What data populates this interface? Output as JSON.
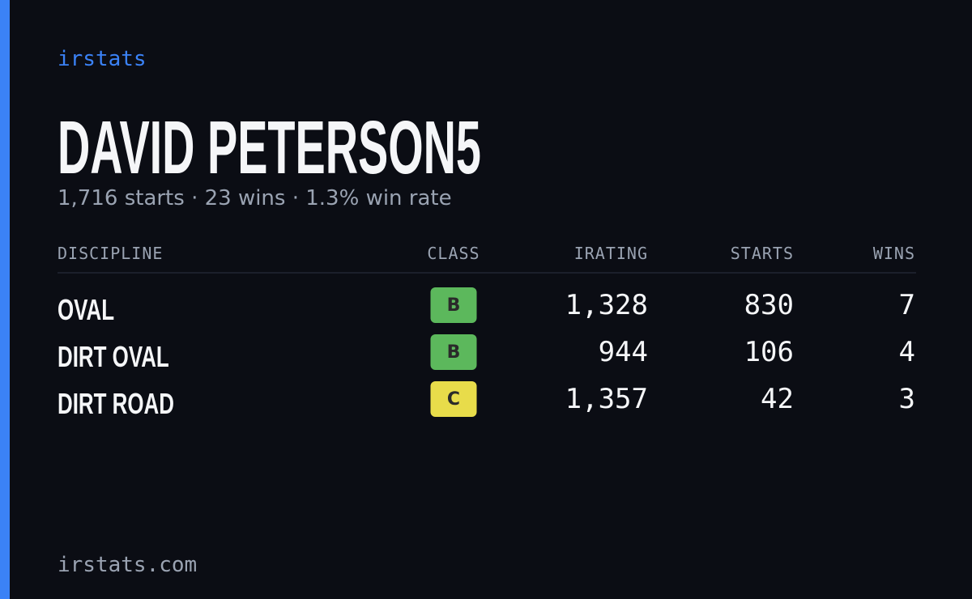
{
  "brand": "irstats",
  "title": "DAVID PETERSON5",
  "subtitle": "1,716 starts · 23 wins · 1.3% win rate",
  "table": {
    "headers": [
      "DISCIPLINE",
      "CLASS",
      "IRATING",
      "STARTS",
      "WINS"
    ],
    "rows": [
      {
        "discipline": "OVAL",
        "class": "B",
        "class_color": "#5cb85c",
        "irating": "1,328",
        "starts": "830",
        "wins": "7"
      },
      {
        "discipline": "DIRT OVAL",
        "class": "B",
        "class_color": "#5cb85c",
        "irating": "944",
        "starts": "106",
        "wins": "4"
      },
      {
        "discipline": "DIRT ROAD",
        "class": "C",
        "class_color": "#e8dc4a",
        "irating": "1,357",
        "starts": "42",
        "wins": "3"
      }
    ]
  },
  "footer": "irstats.com"
}
